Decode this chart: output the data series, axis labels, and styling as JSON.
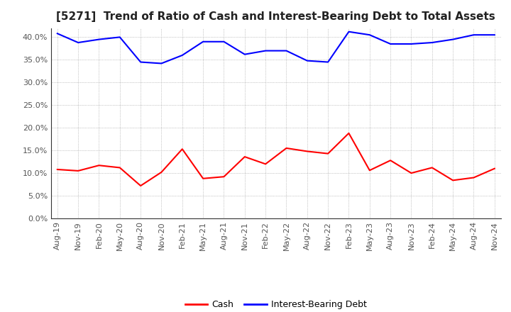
{
  "title": "[5271]  Trend of Ratio of Cash and Interest-Bearing Debt to Total Assets",
  "x_labels": [
    "Aug-19",
    "Nov-19",
    "Feb-20",
    "May-20",
    "Aug-20",
    "Nov-20",
    "Feb-21",
    "May-21",
    "Aug-21",
    "Nov-21",
    "Feb-22",
    "May-22",
    "Aug-22",
    "Nov-22",
    "Feb-23",
    "May-23",
    "Aug-23",
    "Nov-23",
    "Feb-24",
    "May-24",
    "Aug-24",
    "Nov-24"
  ],
  "cash": [
    10.8,
    10.5,
    11.7,
    11.2,
    7.2,
    10.2,
    15.3,
    8.8,
    9.2,
    13.6,
    12.0,
    15.5,
    14.8,
    14.3,
    18.8,
    10.6,
    12.8,
    10.0,
    11.2,
    8.4,
    9.0,
    11.0
  ],
  "interest_bearing_debt": [
    40.8,
    38.8,
    39.5,
    40.0,
    34.5,
    34.2,
    36.0,
    39.0,
    39.0,
    36.2,
    37.0,
    37.0,
    34.8,
    34.5,
    41.2,
    40.5,
    38.5,
    38.5,
    38.8,
    39.5,
    40.5,
    40.5
  ],
  "cash_color": "#ff0000",
  "debt_color": "#0000ff",
  "background_color": "#ffffff",
  "grid_color": "#aaaaaa",
  "ylim": [
    0,
    42
  ],
  "yticks": [
    0.0,
    5.0,
    10.0,
    15.0,
    20.0,
    25.0,
    30.0,
    35.0,
    40.0
  ],
  "legend_cash": "Cash",
  "legend_debt": "Interest-Bearing Debt",
  "title_fontsize": 11,
  "tick_fontsize": 8,
  "line_width": 1.5
}
